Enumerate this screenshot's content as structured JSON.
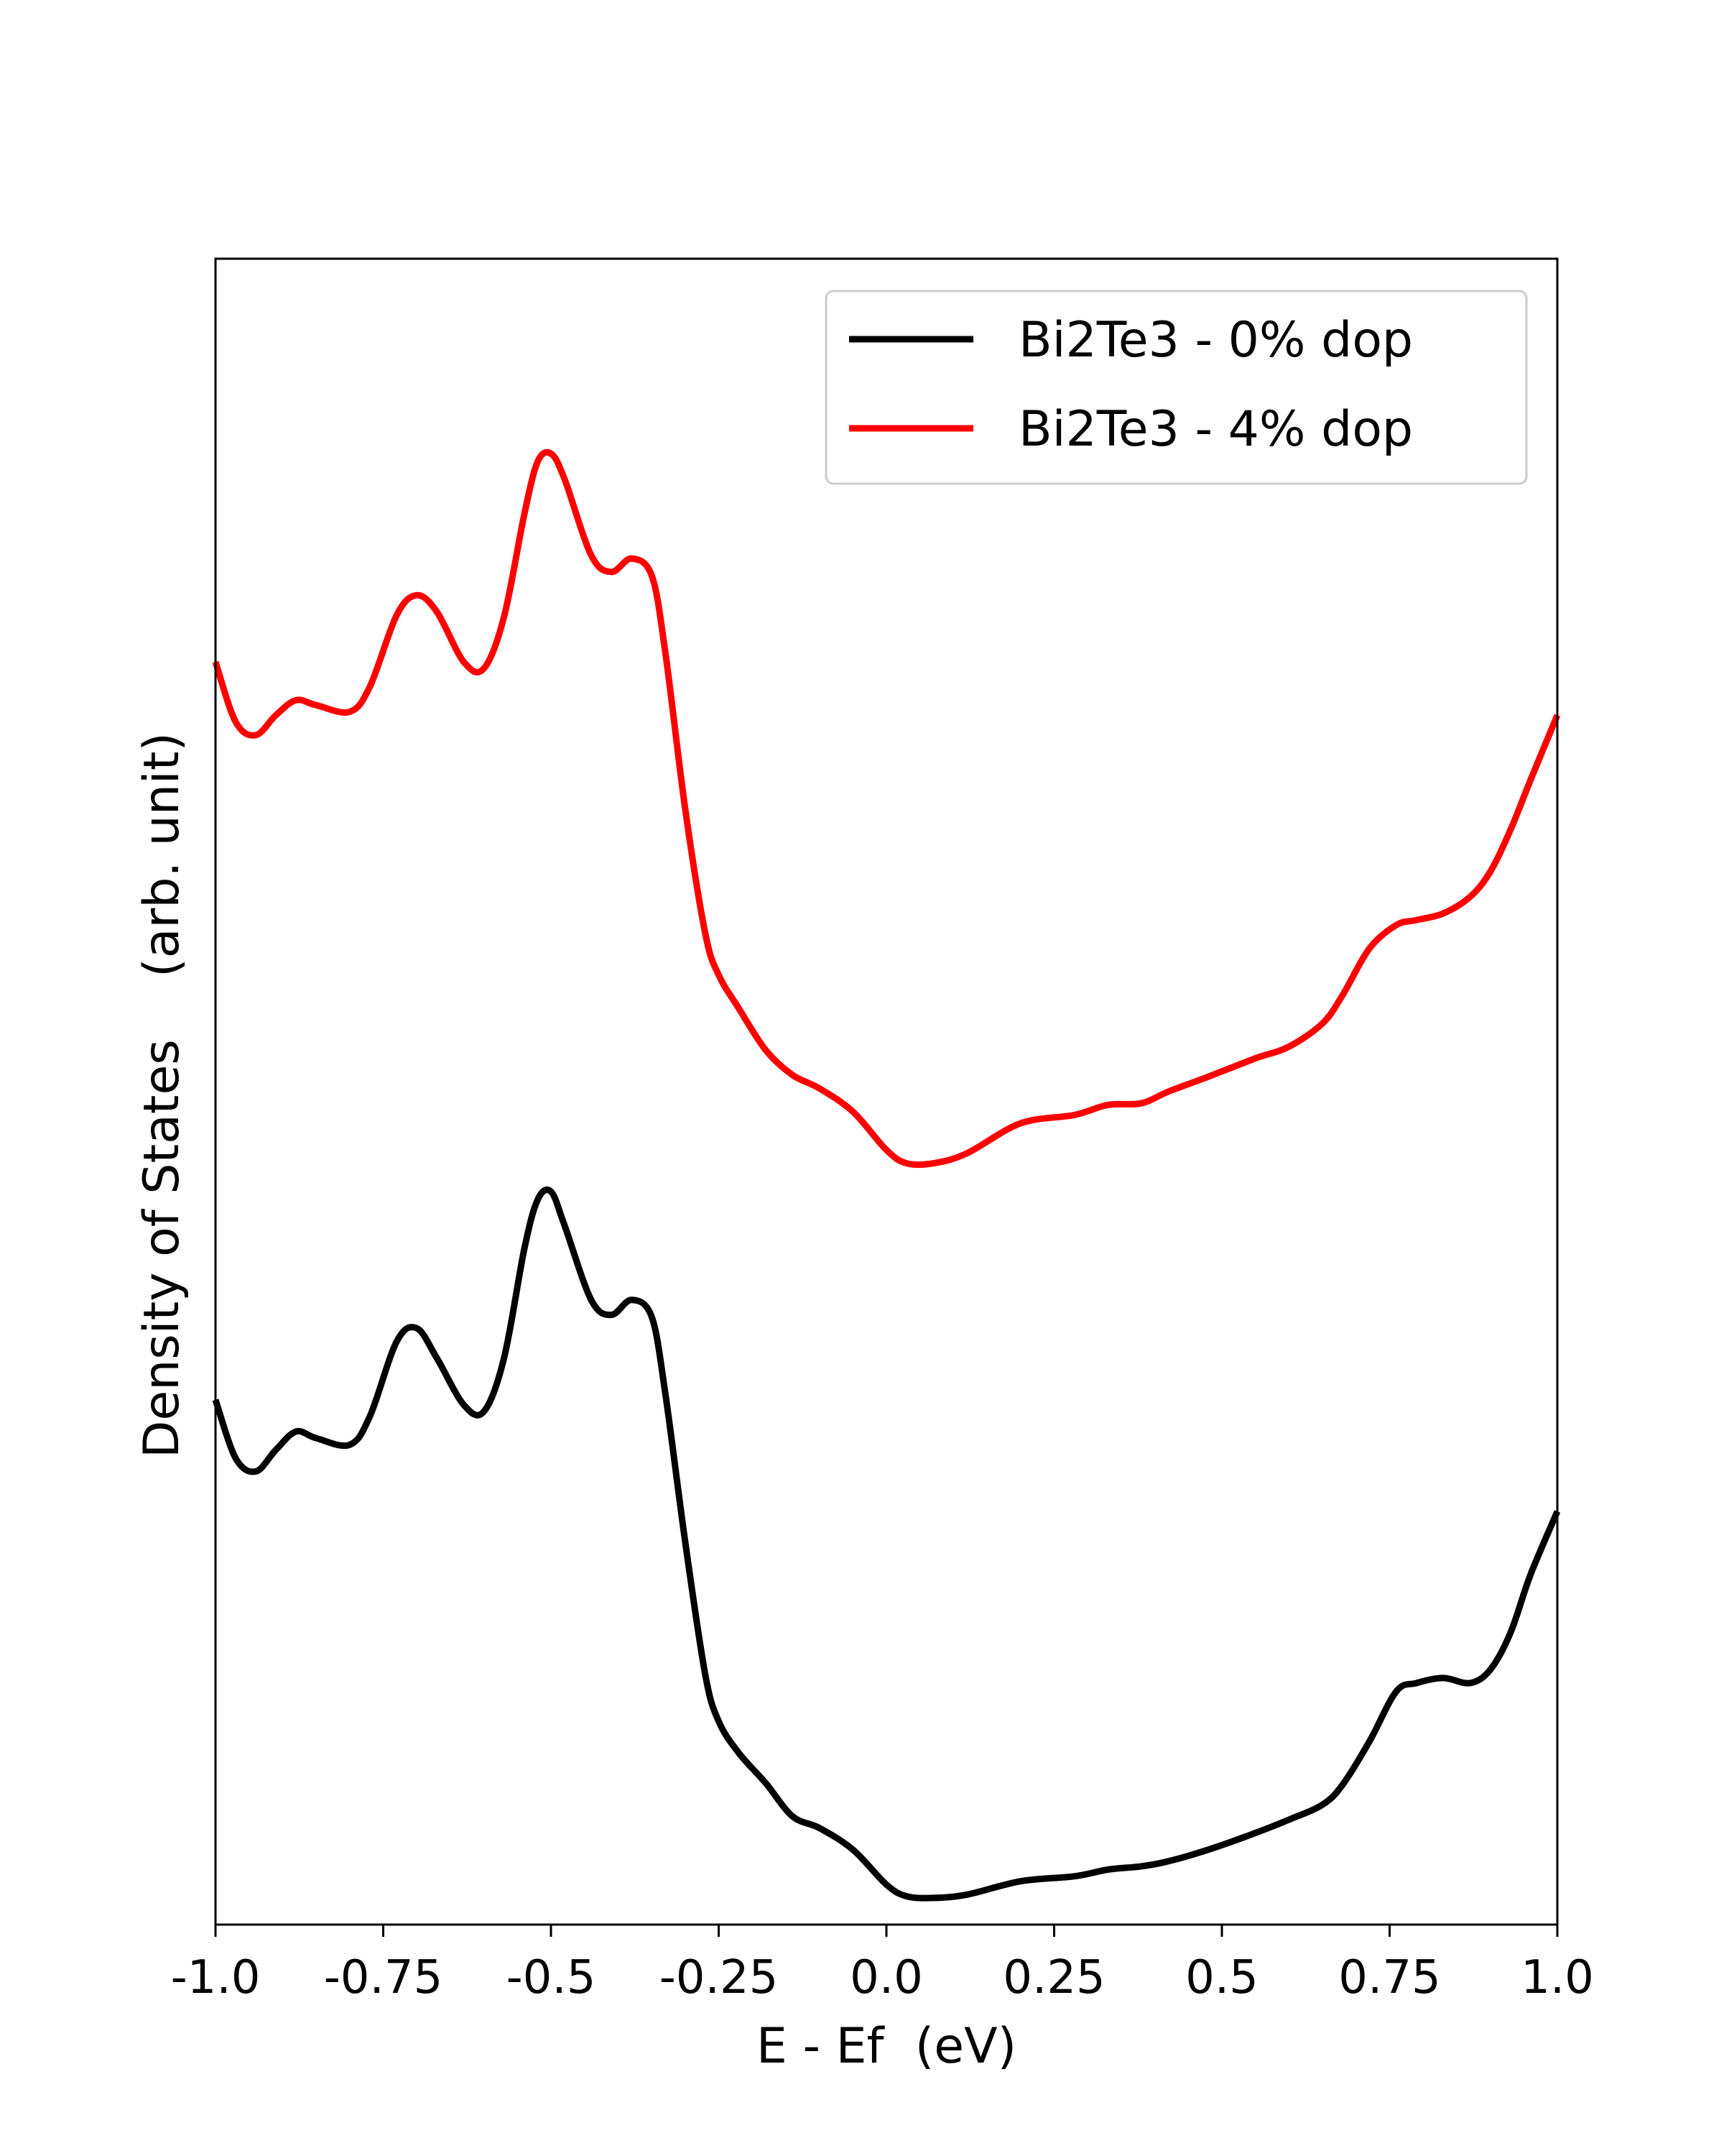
{
  "chart_data": {
    "type": "line",
    "xlabel": "E - Ef  (eV)",
    "ylabel": "Density of States    (arb. unit)",
    "xlim": [
      -1.0,
      1.0
    ],
    "ylim": [
      0,
      100
    ],
    "x_ticks": [
      -1.0,
      -0.75,
      -0.5,
      -0.25,
      0.0,
      0.25,
      0.5,
      0.75,
      1.0
    ],
    "x_tick_labels": [
      "-1.0",
      "-0.75",
      "-0.5",
      "-0.25",
      "0.0",
      "0.25",
      "0.5",
      "0.75",
      "1.0"
    ],
    "y_ticks_visible": false,
    "grid": false,
    "legend": {
      "position": "top-right"
    },
    "series": [
      {
        "name": "Bi2Te3 - 0% dop",
        "color": "#000000",
        "points": [
          [
            -1.0,
            31.5
          ],
          [
            -0.97,
            28.0
          ],
          [
            -0.94,
            27.2
          ],
          [
            -0.91,
            28.5
          ],
          [
            -0.88,
            29.6
          ],
          [
            -0.85,
            29.2
          ],
          [
            -0.8,
            28.8
          ],
          [
            -0.77,
            30.5
          ],
          [
            -0.73,
            35.0
          ],
          [
            -0.7,
            35.8
          ],
          [
            -0.67,
            34.0
          ],
          [
            -0.63,
            31.2
          ],
          [
            -0.6,
            30.8
          ],
          [
            -0.57,
            34.0
          ],
          [
            -0.54,
            40.5
          ],
          [
            -0.52,
            43.5
          ],
          [
            -0.5,
            44.0
          ],
          [
            -0.48,
            42.0
          ],
          [
            -0.44,
            37.5
          ],
          [
            -0.41,
            36.6
          ],
          [
            -0.38,
            37.5
          ],
          [
            -0.35,
            36.5
          ],
          [
            -0.33,
            32.0
          ],
          [
            -0.3,
            23.0
          ],
          [
            -0.27,
            15.0
          ],
          [
            -0.25,
            12.2
          ],
          [
            -0.22,
            10.3
          ],
          [
            -0.18,
            8.5
          ],
          [
            -0.14,
            6.5
          ],
          [
            -0.1,
            5.8
          ],
          [
            -0.05,
            4.5
          ],
          [
            0.0,
            2.4
          ],
          [
            0.03,
            1.7
          ],
          [
            0.07,
            1.6
          ],
          [
            0.12,
            1.8
          ],
          [
            0.2,
            2.6
          ],
          [
            0.28,
            2.9
          ],
          [
            0.33,
            3.3
          ],
          [
            0.38,
            3.5
          ],
          [
            0.42,
            3.8
          ],
          [
            0.48,
            4.5
          ],
          [
            0.55,
            5.5
          ],
          [
            0.6,
            6.3
          ],
          [
            0.65,
            7.2
          ],
          [
            0.68,
            8.4
          ],
          [
            0.72,
            11.0
          ],
          [
            0.76,
            14.0
          ],
          [
            0.79,
            14.5
          ],
          [
            0.83,
            14.8
          ],
          [
            0.87,
            14.5
          ],
          [
            0.9,
            15.3
          ],
          [
            0.93,
            17.5
          ],
          [
            0.96,
            21.0
          ],
          [
            1.0,
            24.8
          ]
        ]
      },
      {
        "name": "Bi2Te3 - 4% dop",
        "color": "#ff0000",
        "points": [
          [
            -1.0,
            75.8
          ],
          [
            -0.97,
            72.2
          ],
          [
            -0.94,
            71.4
          ],
          [
            -0.91,
            72.6
          ],
          [
            -0.88,
            73.5
          ],
          [
            -0.85,
            73.2
          ],
          [
            -0.8,
            72.8
          ],
          [
            -0.77,
            74.3
          ],
          [
            -0.73,
            78.6
          ],
          [
            -0.7,
            79.8
          ],
          [
            -0.67,
            78.8
          ],
          [
            -0.63,
            75.8
          ],
          [
            -0.6,
            75.4
          ],
          [
            -0.57,
            78.5
          ],
          [
            -0.54,
            84.6
          ],
          [
            -0.52,
            87.8
          ],
          [
            -0.5,
            88.3
          ],
          [
            -0.48,
            86.8
          ],
          [
            -0.44,
            82.2
          ],
          [
            -0.41,
            81.2
          ],
          [
            -0.38,
            82.0
          ],
          [
            -0.35,
            81.0
          ],
          [
            -0.33,
            76.5
          ],
          [
            -0.3,
            67.0
          ],
          [
            -0.27,
            59.5
          ],
          [
            -0.25,
            57.0
          ],
          [
            -0.22,
            55.0
          ],
          [
            -0.18,
            52.5
          ],
          [
            -0.14,
            51.0
          ],
          [
            -0.1,
            50.2
          ],
          [
            -0.05,
            48.8
          ],
          [
            0.0,
            46.5
          ],
          [
            0.03,
            45.7
          ],
          [
            0.07,
            45.7
          ],
          [
            0.12,
            46.3
          ],
          [
            0.2,
            48.1
          ],
          [
            0.28,
            48.6
          ],
          [
            0.33,
            49.2
          ],
          [
            0.38,
            49.3
          ],
          [
            0.42,
            50.0
          ],
          [
            0.48,
            50.9
          ],
          [
            0.55,
            52.0
          ],
          [
            0.6,
            52.7
          ],
          [
            0.65,
            54.1
          ],
          [
            0.68,
            55.8
          ],
          [
            0.72,
            58.6
          ],
          [
            0.76,
            60.0
          ],
          [
            0.79,
            60.3
          ],
          [
            0.83,
            60.7
          ],
          [
            0.87,
            61.7
          ],
          [
            0.9,
            63.2
          ],
          [
            0.93,
            65.7
          ],
          [
            0.96,
            68.7
          ],
          [
            1.0,
            72.6
          ]
        ]
      }
    ]
  }
}
